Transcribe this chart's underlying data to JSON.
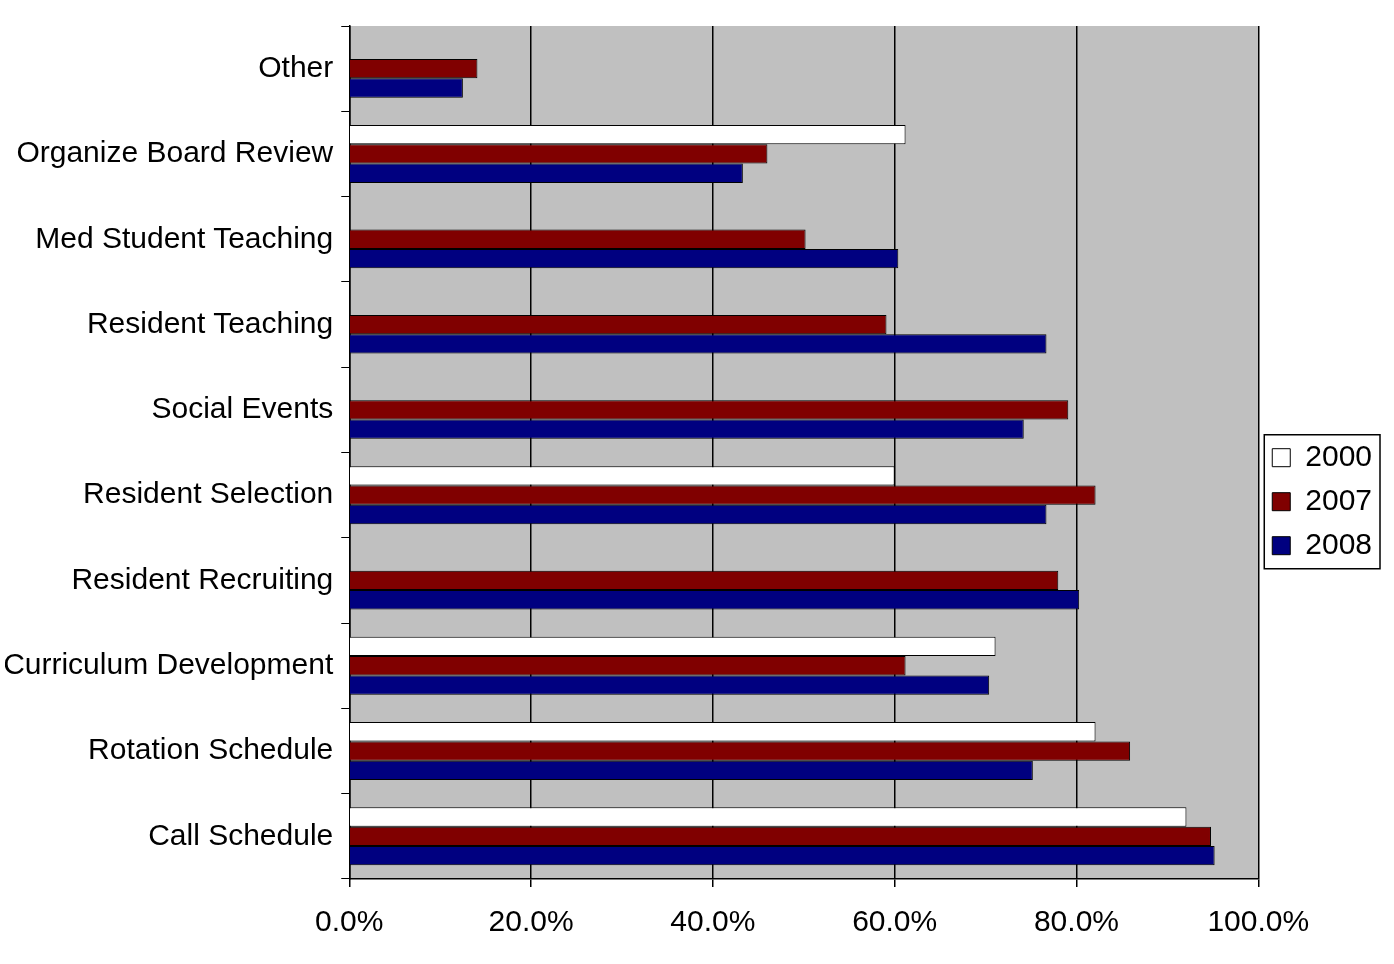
{
  "chart_data": {
    "type": "bar",
    "orientation": "horizontal",
    "categories": [
      "Other",
      "Organize Board Review",
      "Med Student Teaching",
      "Resident Teaching",
      "Social Events",
      "Resident Selection",
      "Resident Recruiting",
      "Curriculum Development",
      "Rotation Schedule",
      "Call Schedule"
    ],
    "series": [
      {
        "name": "2000",
        "color": "#ffffff",
        "values": [
          null,
          61.2,
          null,
          null,
          null,
          60.0,
          null,
          71.1,
          82.1,
          92.1
        ]
      },
      {
        "name": "2007",
        "color": "#800000",
        "values": [
          14.1,
          46.0,
          50.2,
          59.1,
          79.1,
          82.1,
          78.0,
          61.2,
          85.9,
          94.8
        ]
      },
      {
        "name": "2008",
        "color": "#000080",
        "values": [
          12.5,
          43.3,
          60.4,
          76.7,
          74.2,
          76.7,
          80.3,
          70.4,
          75.2,
          95.2
        ]
      }
    ],
    "xlim": [
      0,
      100
    ],
    "xticks": [
      {
        "value": 0,
        "label": "0.0%"
      },
      {
        "value": 20,
        "label": "20.0%"
      },
      {
        "value": 40,
        "label": "40.0%"
      },
      {
        "value": 60,
        "label": "60.0%"
      },
      {
        "value": 80,
        "label": "80.0%"
      },
      {
        "value": 100,
        "label": "100.0%"
      }
    ],
    "grid": "x",
    "legend": "right"
  }
}
